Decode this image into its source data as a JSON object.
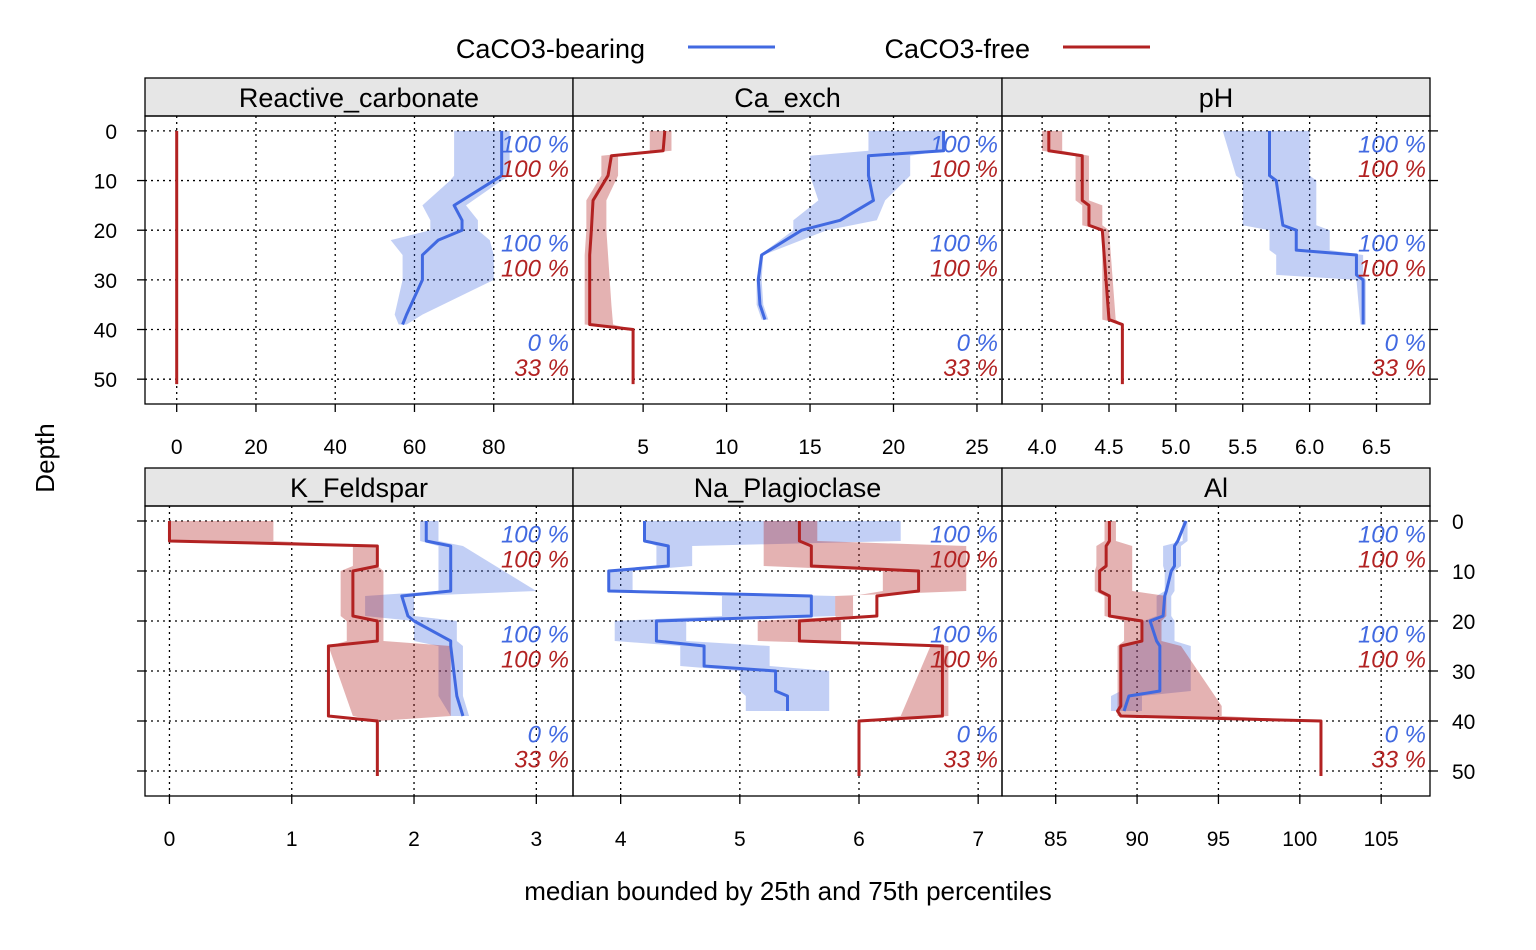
{
  "chart_data": {
    "type": "line",
    "xlabel": "median bounded by 25th and 75th percentiles",
    "ylabel": "Depth",
    "ylim": [
      55,
      -3
    ],
    "depth_ticks": [
      0,
      10,
      20,
      30,
      40,
      50
    ],
    "grid": true,
    "legend": {
      "placement": "top",
      "entries": [
        {
          "name": "CaCO3-bearing",
          "color": "#4169e1"
        },
        {
          "name": "CaCO3-free",
          "color": "#b22222"
        }
      ]
    },
    "panels": [
      {
        "title": "Reactive_carbonate",
        "xlim": [
          -8,
          100
        ],
        "xticks": [
          0,
          20,
          40,
          60,
          80
        ],
        "xtick_labels": [
          "0",
          "20",
          "40",
          "60",
          "80"
        ],
        "pct_labels": [
          {
            "depth": 2.5,
            "group": 0,
            "text": "100 %"
          },
          {
            "depth": 7.5,
            "group": 1,
            "text": "100 %"
          },
          {
            "depth": 22.5,
            "group": 0,
            "text": "100 %"
          },
          {
            "depth": 27.5,
            "group": 1,
            "text": "100 %"
          },
          {
            "depth": 42.5,
            "group": 0,
            "text": "0 %"
          },
          {
            "depth": 47.5,
            "group": 1,
            "text": "33 %"
          }
        ],
        "series": [
          {
            "group": 0,
            "depth": [
              0,
              5,
              9,
              10,
              15,
              18,
              20,
              22,
              25,
              30,
              37,
              39
            ],
            "median": [
              82,
              82,
              82,
              80,
              70,
              72,
              72,
              66,
              62,
              62,
              58,
              57
            ],
            "q25": [
              70,
              70,
              70,
              69,
              62,
              64,
              64,
              54,
              57,
              57,
              55,
              56
            ],
            "q75": [
              84,
              84,
              84,
              82,
              73,
              76,
              76,
              79,
              80,
              80,
              62,
              58
            ]
          },
          {
            "group": 1,
            "depth": [
              0,
              51
            ],
            "median": [
              0,
              0
            ],
            "q25": [
              0,
              0
            ],
            "q75": [
              0,
              0
            ]
          }
        ]
      },
      {
        "title": "Ca_exch",
        "xlim": [
          0.8,
          26.5
        ],
        "xticks": [
          5,
          10,
          15,
          20,
          25
        ],
        "xtick_labels": [
          "5",
          "10",
          "15",
          "20",
          "25"
        ],
        "pct_labels": [
          {
            "depth": 2.5,
            "group": 0,
            "text": "100 %"
          },
          {
            "depth": 7.5,
            "group": 1,
            "text": "100 %"
          },
          {
            "depth": 22.5,
            "group": 0,
            "text": "100 %"
          },
          {
            "depth": 27.5,
            "group": 1,
            "text": "100 %"
          },
          {
            "depth": 42.5,
            "group": 0,
            "text": "0 %"
          },
          {
            "depth": 47.5,
            "group": 1,
            "text": "33 %"
          }
        ],
        "series": [
          {
            "group": 0,
            "depth": [
              0,
              4,
              5,
              9,
              14,
              18,
              20,
              25,
              30,
              35,
              38
            ],
            "median": [
              23,
              23,
              18.5,
              18.5,
              18.8,
              16.8,
              14.5,
              12.1,
              11.9,
              12,
              12.3
            ],
            "q25": [
              18.5,
              18.5,
              15,
              15,
              15.5,
              14,
              14,
              12,
              11.8,
              11.8,
              12.1
            ],
            "q75": [
              23,
              23,
              21,
              21,
              19.5,
              19,
              16,
              12.2,
              12.1,
              12.2,
              12.5
            ],
            "band_depth": [
              0,
              5,
              10,
              20,
              25,
              38
            ]
          },
          {
            "group": 1,
            "depth": [
              0,
              4,
              5,
              9,
              14,
              20,
              25,
              30,
              35,
              39,
              40,
              51
            ],
            "median": [
              6.3,
              6.2,
              3.1,
              2.9,
              2,
              1.9,
              1.8,
              1.8,
              1.8,
              1.8,
              4.4,
              4.4
            ],
            "q25": [
              5.4,
              5.4,
              2.5,
              2.5,
              1.6,
              1.6,
              1.5,
              1.5,
              1.5,
              1.5,
              4.4,
              4.4
            ],
            "q75": [
              6.7,
              6.7,
              3.5,
              3.5,
              2.8,
              2.8,
              2.9,
              3,
              3.1,
              3.2,
              4.4,
              4.4
            ]
          }
        ]
      },
      {
        "title": "pH",
        "xlim": [
          3.7,
          6.9
        ],
        "xticks": [
          4.0,
          4.5,
          5.0,
          5.5,
          6.0,
          6.5
        ],
        "xtick_labels": [
          "4.0",
          "4.5",
          "5.0",
          "5.5",
          "6.0",
          "6.5"
        ],
        "pct_labels": [
          {
            "depth": 2.5,
            "group": 0,
            "text": "100 %"
          },
          {
            "depth": 7.5,
            "group": 1,
            "text": "100 %"
          },
          {
            "depth": 22.5,
            "group": 0,
            "text": "100 %"
          },
          {
            "depth": 27.5,
            "group": 1,
            "text": "100 %"
          },
          {
            "depth": 42.5,
            "group": 0,
            "text": "0 %"
          },
          {
            "depth": 47.5,
            "group": 1,
            "text": "33 %"
          }
        ],
        "series": [
          {
            "group": 0,
            "depth": [
              0,
              9,
              10,
              19,
              20,
              24,
              25,
              29,
              30,
              39
            ],
            "median": [
              5.7,
              5.7,
              5.75,
              5.8,
              5.9,
              5.9,
              6.35,
              6.35,
              6.4,
              6.4
            ],
            "q25": [
              5.35,
              5.45,
              5.5,
              5.5,
              5.7,
              5.7,
              5.75,
              5.75,
              6.35,
              6.38
            ],
            "q75": [
              6.0,
              6.0,
              6.05,
              6.05,
              6.15,
              6.15,
              6.4,
              6.4,
              6.42,
              6.42
            ]
          },
          {
            "group": 1,
            "depth": [
              0,
              4,
              5,
              14,
              15,
              19,
              20,
              38,
              39,
              51
            ],
            "median": [
              4.05,
              4.05,
              4.3,
              4.3,
              4.35,
              4.35,
              4.45,
              4.5,
              4.6,
              4.6
            ],
            "q25": [
              4.0,
              4.0,
              4.25,
              4.25,
              4.3,
              4.3,
              4.45,
              4.45,
              4.6,
              4.6
            ],
            "q75": [
              4.15,
              4.15,
              4.35,
              4.35,
              4.45,
              4.45,
              4.5,
              4.55,
              4.6,
              4.6
            ]
          }
        ]
      },
      {
        "title": "K_Feldspar",
        "xlim": [
          -0.2,
          3.3
        ],
        "xticks": [
          0,
          1,
          2,
          3
        ],
        "xtick_labels": [
          "0",
          "1",
          "2",
          "3"
        ],
        "pct_labels": [
          {
            "depth": 2.5,
            "group": 0,
            "text": "100 %"
          },
          {
            "depth": 7.5,
            "group": 1,
            "text": "100 %"
          },
          {
            "depth": 22.5,
            "group": 0,
            "text": "100 %"
          },
          {
            "depth": 27.5,
            "group": 1,
            "text": "100 %"
          },
          {
            "depth": 42.5,
            "group": 0,
            "text": "0 %"
          },
          {
            "depth": 47.5,
            "group": 1,
            "text": "33 %"
          }
        ],
        "series": [
          {
            "group": 0,
            "depth": [
              0,
              4,
              5,
              14,
              15,
              19,
              20,
              24,
              25,
              35,
              39
            ],
            "median": [
              2.1,
              2.1,
              2.3,
              2.3,
              1.9,
              1.95,
              2.0,
              2.3,
              2.3,
              2.35,
              2.4
            ],
            "q25": [
              2.05,
              2.05,
              2.2,
              2.2,
              1.6,
              1.6,
              2.0,
              2.0,
              2.2,
              2.2,
              2.3
            ],
            "q75": [
              2.2,
              2.2,
              2.4,
              3.0,
              2.0,
              2.0,
              2.35,
              2.35,
              2.4,
              2.4,
              2.45
            ]
          },
          {
            "group": 1,
            "depth": [
              0,
              4,
              5,
              9,
              10,
              19,
              20,
              24,
              25,
              39,
              40,
              51
            ],
            "median": [
              0,
              0,
              1.7,
              1.7,
              1.5,
              1.5,
              1.7,
              1.7,
              1.3,
              1.3,
              1.7,
              1.7
            ],
            "q25": [
              0,
              0,
              1.5,
              1.5,
              1.4,
              1.4,
              1.45,
              1.45,
              1.3,
              1.5,
              1.7,
              1.7
            ],
            "q75": [
              0.85,
              0.85,
              1.7,
              1.7,
              1.75,
              1.75,
              1.75,
              1.75,
              2.3,
              2.3,
              1.7,
              1.7
            ]
          }
        ]
      },
      {
        "title": "Na_Plagioclase",
        "xlim": [
          3.6,
          7.2
        ],
        "xticks": [
          4,
          5,
          6,
          7
        ],
        "xtick_labels": [
          "4",
          "5",
          "6",
          "7"
        ],
        "pct_labels": [
          {
            "depth": 2.5,
            "group": 0,
            "text": "100 %"
          },
          {
            "depth": 7.5,
            "group": 1,
            "text": "100 %"
          },
          {
            "depth": 22.5,
            "group": 0,
            "text": "100 %"
          },
          {
            "depth": 27.5,
            "group": 1,
            "text": "100 %"
          },
          {
            "depth": 42.5,
            "group": 0,
            "text": "0 %"
          },
          {
            "depth": 47.5,
            "group": 1,
            "text": "33 %"
          }
        ],
        "series": [
          {
            "group": 0,
            "depth": [
              0,
              4,
              5,
              9,
              10,
              14,
              15,
              19,
              20,
              24,
              25,
              29,
              30,
              34,
              35,
              38
            ],
            "median": [
              4.2,
              4.2,
              4.4,
              4.4,
              3.9,
              3.9,
              5.6,
              5.6,
              4.3,
              4.3,
              4.7,
              4.7,
              5.3,
              5.3,
              5.4,
              5.4
            ],
            "q25": [
              4.2,
              4.2,
              4.3,
              4.3,
              3.9,
              3.9,
              4.85,
              4.85,
              3.95,
              3.95,
              4.5,
              4.5,
              5.0,
              5.0,
              5.05,
              5.05
            ],
            "q75": [
              6.35,
              6.35,
              4.6,
              4.6,
              4.1,
              4.1,
              5.8,
              5.8,
              4.55,
              4.55,
              5.25,
              5.25,
              5.75,
              5.75,
              5.75,
              5.75
            ]
          },
          {
            "group": 1,
            "depth": [
              0,
              4,
              5,
              9,
              10,
              14,
              15,
              19,
              20,
              24,
              25,
              39,
              40,
              51
            ],
            "median": [
              5.5,
              5.5,
              5.6,
              5.6,
              6.5,
              6.5,
              6.15,
              6.15,
              5.5,
              5.5,
              6.7,
              6.7,
              6.0,
              6.0
            ],
            "q25": [
              5.2,
              5.2,
              5.2,
              5.2,
              6.2,
              6.2,
              5.95,
              5.95,
              5.15,
              5.15,
              6.6,
              6.35,
              6.0,
              6.0
            ],
            "q75": [
              5.65,
              5.65,
              6.9,
              6.9,
              6.9,
              6.9,
              5.8,
              5.8,
              5.85,
              5.85,
              6.75,
              6.75,
              6.0,
              6.0
            ]
          }
        ]
      },
      {
        "title": "Al",
        "xlim": [
          81.7,
          108
        ],
        "xticks": [
          85,
          90,
          95,
          100,
          105
        ],
        "xtick_labels": [
          "85",
          "90",
          "95",
          "100",
          "105"
        ],
        "pct_labels": [
          {
            "depth": 2.5,
            "group": 0,
            "text": "100 %"
          },
          {
            "depth": 7.5,
            "group": 1,
            "text": "100 %"
          },
          {
            "depth": 22.5,
            "group": 0,
            "text": "100 %"
          },
          {
            "depth": 27.5,
            "group": 1,
            "text": "100 %"
          },
          {
            "depth": 42.5,
            "group": 0,
            "text": "0 %"
          },
          {
            "depth": 47.5,
            "group": 1,
            "text": "33 %"
          }
        ],
        "series": [
          {
            "group": 0,
            "depth": [
              0,
              4,
              5,
              9,
              10,
              14,
              15,
              19,
              20,
              24,
              25,
              34,
              35,
              38
            ],
            "median": [
              93,
              92.5,
              92.3,
              92.3,
              92.1,
              91.8,
              91.7,
              91.6,
              90.8,
              91.2,
              91.4,
              91.4,
              89.5,
              89.2
            ],
            "q25": [
              92.8,
              92.8,
              91.6,
              91.6,
              91.7,
              91.7,
              91.2,
              91.2,
              90.4,
              90.4,
              89,
              89,
              88.4,
              88.4
            ],
            "q75": [
              93.1,
              93.1,
              92.7,
              92.7,
              92.3,
              92.3,
              92.1,
              92.1,
              92.3,
              92.3,
              93.3,
              93.3,
              90.3,
              90.3
            ]
          },
          {
            "group": 1,
            "depth": [
              0,
              4,
              5,
              9,
              10,
              14,
              15,
              19,
              20,
              24,
              25,
              37,
              38,
              39,
              40,
              51
            ],
            "median": [
              88.3,
              88.3,
              88.1,
              88.1,
              87.7,
              87.7,
              88.3,
              88.3,
              90.3,
              90.3,
              89.0,
              89.0,
              88.8,
              89.0,
              101.3,
              101.3
            ],
            "q25": [
              88.0,
              88.0,
              87.5,
              87.5,
              87.4,
              87.4,
              88.0,
              88.0,
              89.2,
              89.2,
              88.8,
              88.8,
              88.8,
              88.8,
              101.3,
              101.3
            ],
            "q75": [
              88.7,
              88.7,
              89.7,
              89.7,
              89.7,
              89.7,
              91.8,
              91.8,
              91.5,
              91.5,
              92.7,
              95.2,
              95.2,
              95.2,
              101.3,
              101.3
            ]
          }
        ]
      }
    ]
  },
  "colors": {
    "group0": "#4169e1",
    "group1": "#b22222",
    "strip": "#e6e6e6"
  }
}
